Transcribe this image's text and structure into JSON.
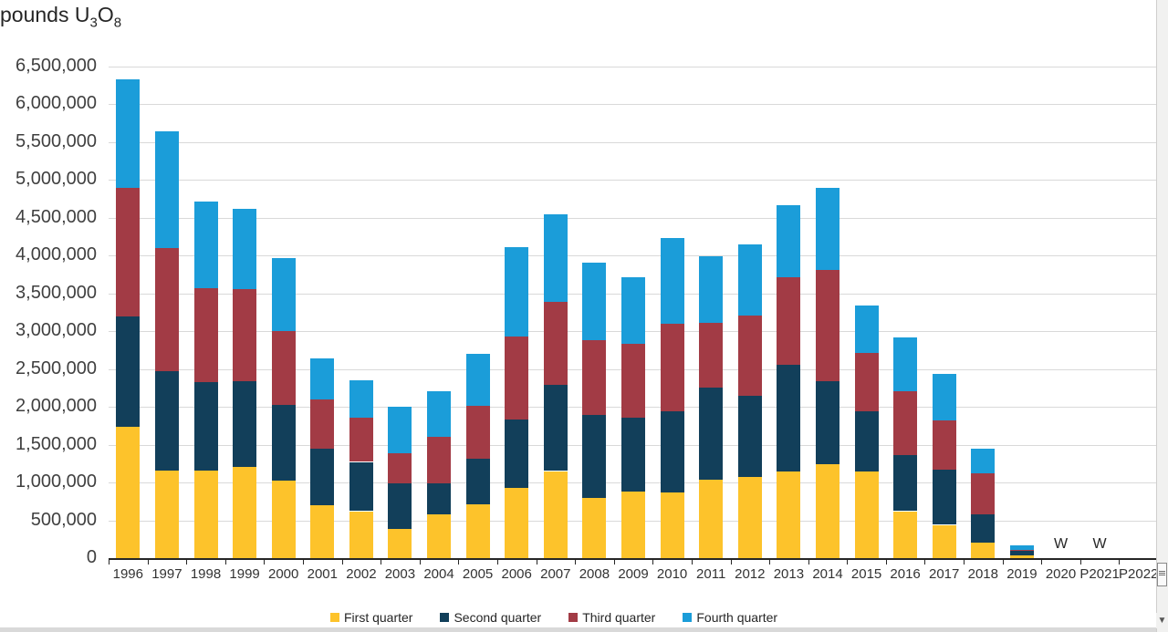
{
  "title": {
    "part1": "pounds U",
    "sub1": "3",
    "part2": "O",
    "sub2": "8"
  },
  "chart_data": {
    "type": "bar",
    "stacked": true,
    "title": "pounds U3O8",
    "xlabel": "",
    "ylabel": "pounds U3O8",
    "grid": true,
    "legend_position": "bottom",
    "categories": [
      "1996",
      "1997",
      "1998",
      "1999",
      "2000",
      "2001",
      "2002",
      "2003",
      "2004",
      "2005",
      "2006",
      "2007",
      "2008",
      "2009",
      "2010",
      "2011",
      "2012",
      "2013",
      "2014",
      "2015",
      "2016",
      "2017",
      "2018",
      "2019",
      "2020",
      "P2021",
      "P2022"
    ],
    "series": [
      {
        "name": "First quarter",
        "color": "#fdc32b",
        "values": [
          1730000,
          1155000,
          1160000,
          1200000,
          1020000,
          700000,
          620000,
          390000,
          580000,
          710000,
          930000,
          1150000,
          800000,
          880000,
          870000,
          1040000,
          1070000,
          1150000,
          1240000,
          1140000,
          620000,
          440000,
          210000,
          35000,
          0,
          0,
          0
        ]
      },
      {
        "name": "Second quarter",
        "color": "#123f5a",
        "values": [
          1460000,
          1315000,
          1160000,
          1140000,
          1000000,
          745000,
          650000,
          600000,
          410000,
          600000,
          900000,
          1140000,
          1090000,
          980000,
          1070000,
          1210000,
          1070000,
          1400000,
          1100000,
          800000,
          740000,
          730000,
          365000,
          60000,
          0,
          0,
          0
        ]
      },
      {
        "name": "Third quarter",
        "color": "#a23b45",
        "values": [
          1700000,
          1625000,
          1250000,
          1210000,
          980000,
          650000,
          580000,
          400000,
          610000,
          700000,
          1100000,
          1100000,
          990000,
          970000,
          1160000,
          860000,
          1060000,
          1160000,
          1470000,
          770000,
          840000,
          650000,
          550000,
          20000,
          0,
          0,
          0
        ]
      },
      {
        "name": "Fourth quarter",
        "color": "#1b9dd9",
        "values": [
          1435000,
          1545000,
          1140000,
          1060000,
          960000,
          545000,
          495000,
          610000,
          600000,
          690000,
          1180000,
          1150000,
          1020000,
          880000,
          1130000,
          880000,
          940000,
          950000,
          1080000,
          630000,
          720000,
          620000,
          320000,
          60000,
          0,
          0,
          0
        ]
      }
    ],
    "y_axis": {
      "min": 0,
      "max": 6500000,
      "step": 500000,
      "tick_labels": [
        "0",
        "500,000",
        "1,000,000",
        "1,500,000",
        "2,000,000",
        "2,500,000",
        "3,000,000",
        "3,500,000",
        "4,000,000",
        "4,500,000",
        "5,000,000",
        "5,500,000",
        "6,000,000",
        "6,500,000"
      ]
    },
    "annotations": [
      {
        "text": "W",
        "category": "2020"
      },
      {
        "text": "W",
        "category": "P2021"
      }
    ]
  },
  "colors": {
    "grid": "#d9d9d9",
    "axis": "#262626",
    "tick_text": "#404040"
  },
  "scrollbar": {
    "down_arrow": "▼"
  }
}
